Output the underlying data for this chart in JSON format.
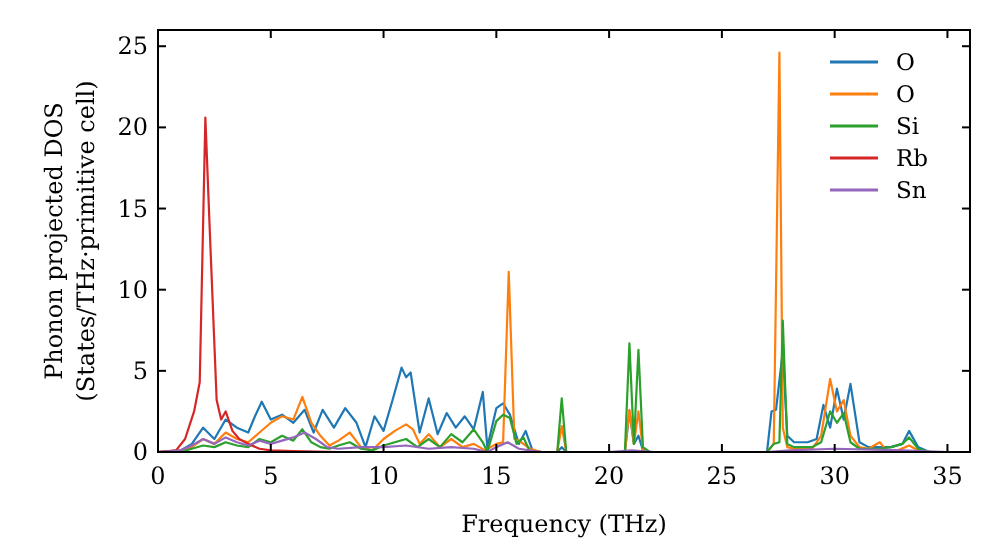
{
  "chart_data": {
    "type": "line",
    "xlabel": "Frequency (THz)",
    "ylabel": "Phonon projected DOS\n(States/THz·primitive cell)",
    "xlim": [
      0,
      36
    ],
    "ylim": [
      0,
      26
    ],
    "xticks": [
      0,
      5,
      10,
      15,
      20,
      25,
      30,
      35
    ],
    "yticks": [
      0,
      5,
      10,
      15,
      20,
      25
    ],
    "legend": "top right",
    "grid": false,
    "series": [
      {
        "name": "O",
        "color": "#1f77b4",
        "x": [
          0,
          1,
          1.5,
          2,
          2.5,
          3,
          3.5,
          4,
          4.3,
          4.6,
          5,
          5.5,
          6,
          6.5,
          6.9,
          7.3,
          7.8,
          8.3,
          8.8,
          9.2,
          9.6,
          10,
          10.4,
          10.8,
          11,
          11.2,
          11.6,
          12,
          12.4,
          12.8,
          13.2,
          13.6,
          14,
          14.4,
          14.6,
          15,
          15.3,
          15.6,
          16,
          16.3,
          16.6,
          17,
          17.7,
          17.9,
          18.1,
          18.5,
          20.7,
          20.9,
          21.1,
          21.3,
          21.5,
          21.8,
          27,
          27.2,
          27.4,
          27.7,
          27.9,
          28.2,
          28.8,
          29.2,
          29.5,
          29.8,
          30.1,
          30.4,
          30.7,
          31.1,
          31.5,
          32,
          32.5,
          33,
          33.3,
          33.7,
          34.2
        ],
        "values": [
          0,
          0.1,
          0.5,
          1.5,
          0.8,
          2,
          1.5,
          1.2,
          2.2,
          3.1,
          2,
          2.3,
          1.8,
          2.6,
          1.2,
          2.6,
          1.5,
          2.7,
          1.8,
          0.3,
          2.2,
          1.3,
          3.2,
          5.2,
          4.6,
          4.9,
          1.2,
          3.3,
          1.1,
          2.4,
          1.5,
          2.2,
          1.4,
          3.7,
          0.3,
          2.7,
          3,
          2.3,
          0.5,
          1.3,
          0.1,
          0,
          0,
          0.3,
          0,
          0,
          0,
          2.5,
          0.5,
          1,
          0.1,
          0,
          0,
          2.5,
          2.6,
          6.2,
          1,
          0.6,
          0.6,
          0.8,
          2.9,
          1.5,
          3.9,
          2,
          4.2,
          0.6,
          0.3,
          0.3,
          0.3,
          0.5,
          1.3,
          0.3,
          0
        ]
      },
      {
        "name": "O",
        "color": "#ff7f0e",
        "x": [
          0,
          1,
          1.5,
          2,
          2.5,
          3,
          3.5,
          4,
          4.5,
          5,
          5.5,
          6,
          6.4,
          6.8,
          7.2,
          7.6,
          8,
          8.5,
          9,
          9.5,
          10,
          10.5,
          11,
          11.3,
          11.6,
          12,
          12.5,
          13,
          13.5,
          14,
          14.5,
          15,
          15.3,
          15.55,
          15.8,
          16,
          16.5,
          17,
          17.7,
          17.9,
          18.1,
          18.5,
          20.7,
          20.9,
          21.1,
          21.3,
          21.5,
          21.8,
          27,
          27.3,
          27.55,
          27.7,
          27.9,
          28.2,
          29,
          29.4,
          29.8,
          30.1,
          30.4,
          30.7,
          31.1,
          31.5,
          32,
          32.3,
          32.8,
          33.3,
          33.7,
          34.2
        ],
        "values": [
          0,
          0.1,
          0.3,
          0.8,
          0.5,
          1.2,
          0.8,
          0.6,
          1.2,
          1.8,
          2.2,
          2,
          3.4,
          1.8,
          1,
          0.4,
          0.7,
          1.2,
          0.3,
          0.1,
          0.8,
          1.3,
          1.7,
          1.4,
          0.5,
          1.1,
          0.3,
          0.8,
          0.3,
          0.5,
          0.1,
          0.5,
          0.6,
          11.1,
          0.8,
          0.7,
          0.2,
          0,
          0,
          1.6,
          0,
          0,
          0,
          2.6,
          0.5,
          2.5,
          0.2,
          0,
          0,
          0.5,
          24.6,
          1.5,
          0.3,
          0.2,
          0.2,
          1,
          4.5,
          2.5,
          3.2,
          1,
          0.3,
          0.2,
          0.6,
          0.1,
          0.1,
          0.4,
          0.1,
          0
        ]
      },
      {
        "name": "Si",
        "color": "#2ca02c",
        "x": [
          0,
          1,
          1.5,
          2,
          2.5,
          3,
          3.5,
          4,
          4.5,
          5,
          5.5,
          6,
          6.4,
          6.8,
          7.2,
          7.6,
          8,
          8.5,
          9,
          9.5,
          10,
          10.5,
          11,
          11.5,
          12,
          12.5,
          13,
          13.5,
          14,
          14.4,
          14.6,
          15,
          15.3,
          15.6,
          15.9,
          16.2,
          16.5,
          17,
          17.7,
          17.9,
          18.1,
          18.5,
          20.7,
          20.9,
          21.1,
          21.3,
          21.5,
          21.8,
          27,
          27.3,
          27.55,
          27.7,
          27.9,
          28.2,
          29,
          29.4,
          29.8,
          30.1,
          30.4,
          30.7,
          31.1,
          31.5,
          32,
          32.5,
          33,
          33.3,
          33.7,
          34.2
        ],
        "values": [
          0,
          0,
          0.2,
          0.4,
          0.3,
          0.6,
          0.4,
          0.3,
          0.8,
          0.6,
          1,
          0.7,
          1.4,
          0.6,
          0.3,
          0.2,
          0.4,
          0.6,
          0.2,
          0.1,
          0.4,
          0.6,
          0.8,
          0.3,
          0.8,
          0.3,
          1.1,
          0.6,
          1.4,
          0.6,
          0,
          1.9,
          2.3,
          2.1,
          0.5,
          0.9,
          0,
          0,
          0,
          3.3,
          0,
          0,
          0,
          6.7,
          0.5,
          6.3,
          0.3,
          0,
          0,
          0.5,
          0.6,
          8.1,
          0.5,
          0.3,
          0.3,
          0.6,
          2.5,
          1.8,
          2.4,
          0.6,
          0.2,
          0.2,
          0.2,
          0.3,
          0.5,
          0.9,
          0.2,
          0
        ]
      },
      {
        "name": "Rb",
        "color": "#d62728",
        "x": [
          0,
          0.8,
          1.2,
          1.6,
          1.85,
          2.1,
          2.3,
          2.6,
          2.8,
          3,
          3.3,
          3.6,
          4,
          4.5,
          5,
          6,
          8,
          10,
          15,
          20,
          25,
          30,
          35
        ],
        "values": [
          0,
          0.1,
          0.8,
          2.5,
          4.3,
          20.6,
          13.5,
          3.2,
          2,
          2.5,
          1.3,
          0.8,
          0.5,
          0.2,
          0.1,
          0.05,
          0,
          0,
          0,
          0,
          0,
          0,
          0
        ]
      },
      {
        "name": "Sn",
        "color": "#9467bd",
        "x": [
          0,
          1,
          1.5,
          2,
          2.5,
          3,
          3.5,
          4,
          4.5,
          5,
          5.5,
          6,
          6.5,
          7,
          7.5,
          8,
          9,
          10,
          11,
          12,
          13,
          14,
          14.6,
          15,
          15.5,
          16,
          17,
          20,
          21,
          22,
          27,
          28,
          30,
          33,
          35
        ],
        "values": [
          0,
          0.1,
          0.4,
          0.8,
          0.5,
          0.9,
          0.6,
          0.4,
          0.7,
          0.5,
          0.7,
          0.9,
          1.2,
          0.8,
          0.3,
          0.2,
          0.3,
          0.3,
          0.4,
          0.2,
          0.3,
          0.2,
          0,
          0.3,
          0.6,
          0.2,
          0,
          0,
          0.1,
          0,
          0,
          0.1,
          0.2,
          0.1,
          0
        ]
      }
    ]
  }
}
